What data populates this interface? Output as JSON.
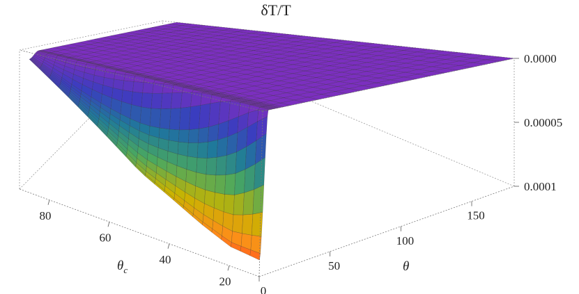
{
  "chart_data": {
    "type": "surface3d",
    "title": "δT/T",
    "xlabel": "θ",
    "ylabel": "θ",
    "ylabel_subscript": "c",
    "zlabel": "",
    "x_ticks": [
      "0",
      "50",
      "100",
      "150"
    ],
    "y_ticks": [
      "20",
      "40",
      "60",
      "80"
    ],
    "z_ticks": [
      "0.0000",
      "0.00005",
      "0.0001"
    ],
    "x_range": [
      0,
      180
    ],
    "y_range": [
      10,
      90
    ],
    "z_range": [
      0,
      0.0001
    ],
    "z_axis_inverted": true,
    "surface_samples": {
      "theta_c": [
        10,
        20,
        30,
        40,
        50,
        60,
        70,
        80,
        90
      ],
      "theta_edge": [
        4,
        5,
        6,
        7,
        8,
        9,
        10,
        11,
        12
      ],
      "plateau_value": 0.0,
      "depth_at_theta_0": [
        9e-05,
        8.8e-05,
        8e-05,
        7e-05,
        6e-05,
        4.5e-05,
        3e-05,
        1.5e-05,
        0.0
      ]
    },
    "colormap": [
      "#ff2020",
      "#ff8c1a",
      "#c8b400",
      "#4aa860",
      "#1f7a9a",
      "#3a3dbf",
      "#7b2fbf"
    ],
    "grid": true,
    "box": true
  }
}
